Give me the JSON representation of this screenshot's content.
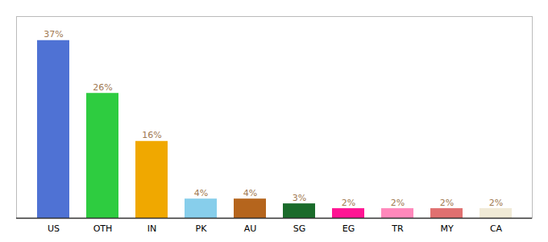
{
  "chart_data": {
    "type": "bar",
    "categories": [
      "US",
      "OTH",
      "IN",
      "PK",
      "AU",
      "SG",
      "EG",
      "TR",
      "MY",
      "CA"
    ],
    "values": [
      37,
      26,
      16,
      4,
      4,
      3,
      2,
      2,
      2,
      2
    ],
    "colors": [
      "#4f72d4",
      "#2ecc40",
      "#f0a800",
      "#87ceeb",
      "#b5651d",
      "#1a6b2a",
      "#ff1493",
      "#ff88bb",
      "#e07070",
      "#f0ead6"
    ],
    "ylim": [
      0,
      42
    ],
    "data_labels": true,
    "value_labels": [
      "37%",
      "26%",
      "16%",
      "4%",
      "4%",
      "3%",
      "2%",
      "2%",
      "2%",
      "2%"
    ],
    "tick_labels": "x",
    "grid": false
  }
}
